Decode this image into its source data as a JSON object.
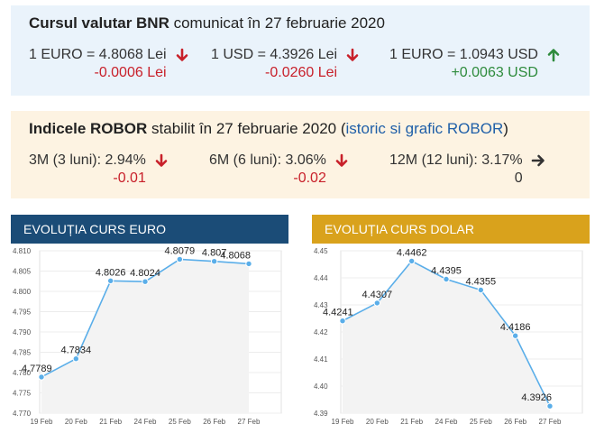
{
  "bnr": {
    "title_bold": "Cursul valutar BNR",
    "title_rest": " comunicat în 27 februarie 2020",
    "rates": [
      {
        "label": "1 EURO = 4.8068 Lei",
        "change": "-0.0006 Lei",
        "direction": "down",
        "icon": "arrow-down-icon",
        "color": "#c8202a"
      },
      {
        "label": "1 USD = 4.3926 Lei",
        "change": "-0.0260 Lei",
        "direction": "down",
        "icon": "arrow-down-icon",
        "color": "#c8202a"
      },
      {
        "label": "1 EURO = 1.0943 USD",
        "change": "+0.0063 USD",
        "direction": "up",
        "icon": "arrow-up-icon",
        "color": "#2e8b3c"
      }
    ]
  },
  "robor": {
    "title_bold": "Indicele ROBOR",
    "title_rest": " stabilit în 27 februarie 2020 (",
    "link": "istoric si grafic ROBOR",
    "title_end": ")",
    "rates": [
      {
        "label": "3M (3 luni): 2.94%",
        "change": "-0.01",
        "direction": "down",
        "icon": "arrow-down-icon",
        "color": "#c8202a"
      },
      {
        "label": "6M (6 luni): 3.06%",
        "change": "-0.02",
        "direction": "down",
        "icon": "arrow-down-icon",
        "color": "#c8202a"
      },
      {
        "label": "12M (12 luni): 3.17%",
        "change": "0",
        "direction": "flat",
        "icon": "arrow-right-icon",
        "color": "#333333"
      }
    ]
  },
  "chart_data": [
    {
      "type": "line",
      "title": "EVOLUȚIA CURS EURO",
      "header_color": "#1b4c77",
      "line_color": "#5aaee9",
      "categories": [
        "19 Feb",
        "20 Feb",
        "21 Feb",
        "24 Feb",
        "25 Feb",
        "26 Feb",
        "27 Feb"
      ],
      "values": [
        4.7789,
        4.7834,
        4.8026,
        4.8024,
        4.8079,
        4.8074,
        4.8068
      ],
      "data_labels": [
        "4.7789",
        "4.7834",
        "4.8026",
        "4.8024",
        "4.8079",
        "4.807",
        "4.8068"
      ],
      "yticks": [
        "4.810",
        "4.805",
        "4.800",
        "4.795",
        "4.790",
        "4.785",
        "4.780",
        "4.775",
        "4.770"
      ],
      "ylim": [
        4.77,
        4.81
      ]
    },
    {
      "type": "line",
      "title": "EVOLUȚIA CURS DOLAR",
      "header_color": "#d9a21c",
      "line_color": "#5aaee9",
      "categories": [
        "19 Feb",
        "20 Feb",
        "21 Feb",
        "24 Feb",
        "25 Feb",
        "26 Feb",
        "27 Feb"
      ],
      "values": [
        4.4241,
        4.4307,
        4.4462,
        4.4395,
        4.4355,
        4.4186,
        4.3926
      ],
      "data_labels": [
        "4.4241",
        "4.4307",
        "4.4462",
        "4.4395",
        "4.4355",
        "4.4186",
        "4.3926"
      ],
      "yticks": [
        "4.45",
        "4.44",
        "4.43",
        "4.42",
        "4.41",
        "4.40",
        "4.39"
      ],
      "ylim": [
        4.39,
        4.45
      ]
    }
  ]
}
